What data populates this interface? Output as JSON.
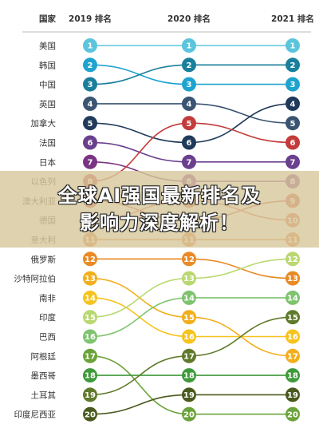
{
  "chart_data": {
    "type": "bump",
    "header_label": "国家",
    "years": [
      "2019 排名",
      "2020 排名",
      "2021 排名"
    ],
    "countries": [
      {
        "name": "美国",
        "ranks": [
          1,
          1,
          1
        ],
        "color": "#5bc5dc"
      },
      {
        "name": "韩国",
        "ranks": [
          2,
          3,
          3
        ],
        "color": "#1ea3cf"
      },
      {
        "name": "中国",
        "ranks": [
          3,
          2,
          2
        ],
        "color": "#1a7f9c"
      },
      {
        "name": "英国",
        "ranks": [
          4,
          4,
          5
        ],
        "color": "#3b5472"
      },
      {
        "name": "加拿大",
        "ranks": [
          5,
          6,
          4
        ],
        "color": "#1f3a5a"
      },
      {
        "name": "法国",
        "ranks": [
          6,
          7,
          7
        ],
        "color": "#6a3f8e"
      },
      {
        "name": "日本",
        "ranks": [
          7,
          8,
          8
        ],
        "color": "#7a3484"
      },
      {
        "name": "以色列",
        "ranks": [
          8,
          5,
          6
        ],
        "color": "#c33b3a"
      },
      {
        "name": "澳大利亚",
        "ranks": [
          9,
          10,
          9
        ],
        "color": "#ca4f37"
      },
      {
        "name": "德国",
        "ranks": [
          10,
          9,
          10
        ],
        "color": "#d9603a"
      },
      {
        "name": "意大利",
        "ranks": [
          11,
          11,
          11
        ],
        "color": "#e0742f"
      },
      {
        "name": "俄罗斯",
        "ranks": [
          12,
          12,
          13
        ],
        "color": "#e98a24"
      },
      {
        "name": "沙特阿拉伯",
        "ranks": [
          13,
          15,
          17
        ],
        "color": "#f2ae1c"
      },
      {
        "name": "南非",
        "ranks": [
          14,
          16,
          16
        ],
        "color": "#f6c31d"
      },
      {
        "name": "印度",
        "ranks": [
          15,
          13,
          12
        ],
        "color": "#b9d871"
      },
      {
        "name": "巴西",
        "ranks": [
          16,
          14,
          14
        ],
        "color": "#7fc36e"
      },
      {
        "name": "阿根廷",
        "ranks": [
          17,
          20,
          20
        ],
        "color": "#6ba33a"
      },
      {
        "name": "墨西哥",
        "ranks": [
          18,
          18,
          18
        ],
        "color": "#3f9a3c"
      },
      {
        "name": "土耳其",
        "ranks": [
          19,
          17,
          15
        ],
        "color": "#5f7a2a"
      },
      {
        "name": "印度尼西亚",
        "ranks": [
          20,
          19,
          19
        ],
        "color": "#4a5a1e"
      }
    ]
  },
  "banner": {
    "line1": "全球AI强国最新排名及",
    "line2": "影响力深度解析！"
  }
}
